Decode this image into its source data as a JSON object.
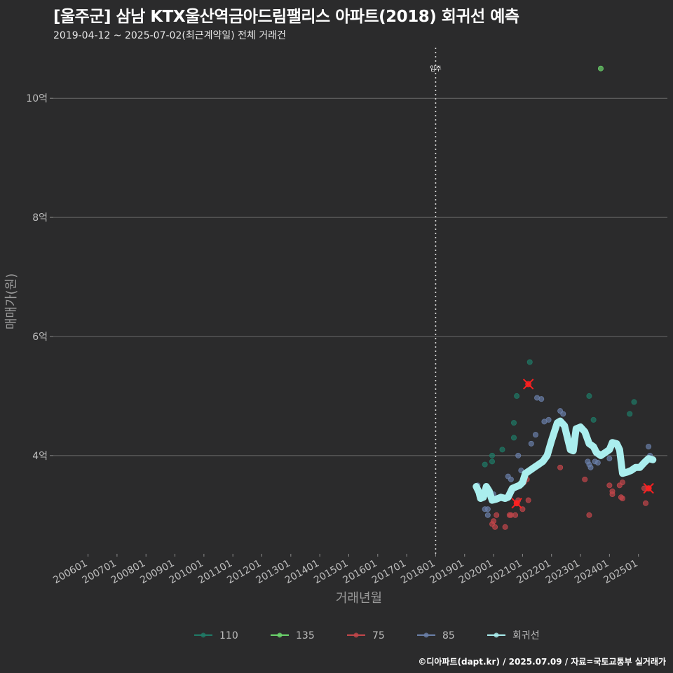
{
  "header": {
    "title": "[울주군] 삼남 KTX울산역금아드림팰리스 아파트(2018) 회귀선 예측",
    "subtitle": "2019-04-12 ~ 2025-07-02(최근계약일) 전체 거래건"
  },
  "footer": {
    "caption": "©디아파트(dapt.kr) / 2025.07.09 / 자료=국토교통부 실거래가"
  },
  "colors": {
    "background": "#2b2b2c",
    "grid": "#6a6a6a",
    "regression": "#aaeeee",
    "s110": "#1f7a66",
    "s135": "#6bd46b",
    "s75": "#c2464a",
    "s85": "#6a7fa8",
    "highlight": "#ff2020"
  },
  "chart_data": {
    "type": "scatter",
    "title": "[울주군] 삼남 KTX울산역금아드림팰리스 아파트(2018) 회귀선 예측",
    "xlabel": "거래년월",
    "ylabel": "매매가(원)",
    "x_ticks": [
      "200601",
      "200701",
      "200801",
      "200901",
      "201001",
      "201101",
      "201201",
      "201301",
      "201401",
      "201501",
      "201601",
      "201701",
      "201801",
      "201901",
      "202001",
      "202101",
      "202201",
      "202301",
      "202401",
      "202501"
    ],
    "xlim": [
      2004.8,
      2026.0
    ],
    "y_ticks": [
      4,
      6,
      8,
      10
    ],
    "y_tick_labels": [
      "4억",
      "6억",
      "8억",
      "10억"
    ],
    "ylim": [
      2.35,
      10.85
    ],
    "y_unit": "억",
    "grid": true,
    "legend_position": "bottom",
    "annotations": [
      {
        "label": "입주",
        "x": 2018.0
      }
    ],
    "series": [
      {
        "name": "110",
        "color": "#1f7a66",
        "points": [
          [
            2019.7,
            3.85
          ],
          [
            2019.95,
            3.9
          ],
          [
            2019.95,
            4.0
          ],
          [
            2020.3,
            4.1
          ],
          [
            2020.7,
            4.3
          ],
          [
            2020.7,
            4.55
          ],
          [
            2020.8,
            5.0
          ],
          [
            2021.25,
            5.57
          ],
          [
            2023.3,
            5.0
          ],
          [
            2023.45,
            4.6
          ],
          [
            2024.7,
            4.7
          ],
          [
            2024.85,
            4.9
          ]
        ]
      },
      {
        "name": "135",
        "color": "#6bd46b",
        "points": [
          [
            2023.7,
            10.5
          ]
        ]
      },
      {
        "name": "75",
        "color": "#c2464a",
        "points": [
          [
            2019.95,
            2.85
          ],
          [
            2020.0,
            2.9
          ],
          [
            2020.05,
            2.8
          ],
          [
            2020.1,
            3.0
          ],
          [
            2020.4,
            2.8
          ],
          [
            2020.55,
            3.0
          ],
          [
            2020.6,
            3.0
          ],
          [
            2020.75,
            3.0
          ],
          [
            2020.8,
            3.2
          ],
          [
            2020.85,
            3.25
          ],
          [
            2021.0,
            3.1
          ],
          [
            2021.05,
            3.55
          ],
          [
            2021.15,
            3.6
          ],
          [
            2021.2,
            3.25
          ],
          [
            2021.35,
            3.8
          ],
          [
            2022.3,
            3.8
          ],
          [
            2023.15,
            3.6
          ],
          [
            2023.3,
            3.0
          ],
          [
            2024.0,
            3.5
          ],
          [
            2024.1,
            3.4
          ],
          [
            2024.1,
            3.35
          ],
          [
            2024.35,
            3.5
          ],
          [
            2024.4,
            3.3
          ],
          [
            2024.45,
            3.28
          ],
          [
            2024.45,
            3.55
          ],
          [
            2025.2,
            3.45
          ],
          [
            2025.25,
            3.2
          ],
          [
            2025.35,
            3.45
          ]
        ],
        "highlight": [
          [
            2020.8,
            3.2
          ],
          [
            2021.2,
            5.2
          ],
          [
            2025.35,
            3.45
          ]
        ]
      },
      {
        "name": "85",
        "color": "#6a7fa8",
        "points": [
          [
            2019.45,
            3.5
          ],
          [
            2019.7,
            3.1
          ],
          [
            2019.8,
            3.1
          ],
          [
            2019.8,
            3.0
          ],
          [
            2019.9,
            3.3
          ],
          [
            2020.0,
            3.35
          ],
          [
            2020.3,
            3.3
          ],
          [
            2020.45,
            3.3
          ],
          [
            2020.5,
            3.65
          ],
          [
            2020.6,
            3.6
          ],
          [
            2020.85,
            4.0
          ],
          [
            2020.95,
            3.75
          ],
          [
            2021.3,
            4.2
          ],
          [
            2021.45,
            4.35
          ],
          [
            2021.5,
            4.97
          ],
          [
            2021.65,
            4.95
          ],
          [
            2021.75,
            4.57
          ],
          [
            2021.9,
            4.6
          ],
          [
            2022.3,
            4.75
          ],
          [
            2022.4,
            4.7
          ],
          [
            2023.25,
            3.9
          ],
          [
            2023.3,
            3.85
          ],
          [
            2023.35,
            3.8
          ],
          [
            2023.5,
            3.9
          ],
          [
            2023.6,
            3.88
          ],
          [
            2024.0,
            3.95
          ],
          [
            2024.4,
            3.88
          ],
          [
            2025.35,
            4.15
          ],
          [
            2025.4,
            4.0
          ]
        ]
      }
    ],
    "regression_line": [
      [
        2019.4,
        3.48
      ],
      [
        2019.5,
        3.38
      ],
      [
        2019.55,
        3.28
      ],
      [
        2019.65,
        3.3
      ],
      [
        2019.75,
        3.48
      ],
      [
        2019.85,
        3.4
      ],
      [
        2019.95,
        3.25
      ],
      [
        2020.1,
        3.27
      ],
      [
        2020.25,
        3.3
      ],
      [
        2020.4,
        3.28
      ],
      [
        2020.5,
        3.3
      ],
      [
        2020.65,
        3.45
      ],
      [
        2020.8,
        3.48
      ],
      [
        2020.9,
        3.5
      ],
      [
        2021.0,
        3.55
      ],
      [
        2021.1,
        3.7
      ],
      [
        2021.25,
        3.75
      ],
      [
        2021.4,
        3.8
      ],
      [
        2021.55,
        3.85
      ],
      [
        2021.7,
        3.9
      ],
      [
        2021.85,
        4.0
      ],
      [
        2022.0,
        4.25
      ],
      [
        2022.1,
        4.4
      ],
      [
        2022.2,
        4.55
      ],
      [
        2022.3,
        4.58
      ],
      [
        2022.45,
        4.5
      ],
      [
        2022.55,
        4.3
      ],
      [
        2022.65,
        4.1
      ],
      [
        2022.75,
        4.08
      ],
      [
        2022.85,
        4.45
      ],
      [
        2023.0,
        4.48
      ],
      [
        2023.15,
        4.4
      ],
      [
        2023.3,
        4.2
      ],
      [
        2023.45,
        4.15
      ],
      [
        2023.55,
        4.05
      ],
      [
        2023.7,
        4.0
      ],
      [
        2023.85,
        4.05
      ],
      [
        2024.0,
        4.1
      ],
      [
        2024.1,
        4.22
      ],
      [
        2024.25,
        4.2
      ],
      [
        2024.35,
        4.1
      ],
      [
        2024.45,
        3.7
      ],
      [
        2024.6,
        3.72
      ],
      [
        2024.75,
        3.75
      ],
      [
        2024.9,
        3.8
      ],
      [
        2025.05,
        3.8
      ],
      [
        2025.2,
        3.88
      ],
      [
        2025.35,
        3.95
      ],
      [
        2025.5,
        3.93
      ]
    ],
    "regression_name": "회귀선"
  }
}
